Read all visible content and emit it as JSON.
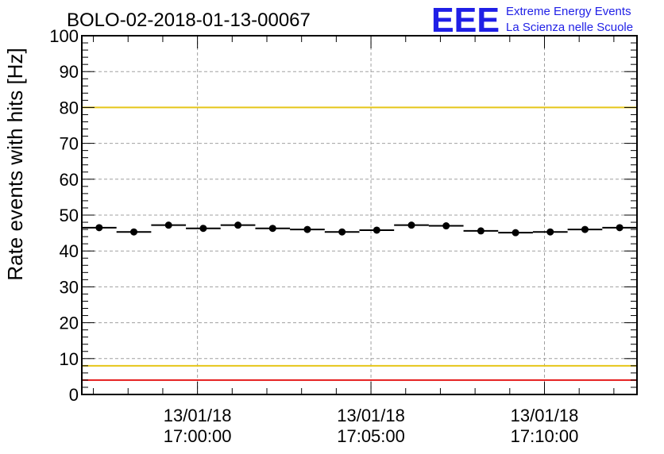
{
  "chart_data": {
    "type": "scatter",
    "title": "BOLO-02-2018-01-13-00067",
    "ylabel": "Rate events with hits [Hz]",
    "xlabel": "",
    "ylim": [
      0,
      100
    ],
    "y_ticks": [
      0,
      10,
      20,
      30,
      40,
      50,
      60,
      70,
      80,
      90,
      100
    ],
    "x_tick_labels": [
      {
        "date": "13/01/18",
        "time": "17:00:00"
      },
      {
        "date": "13/01/18",
        "time": "17:05:00"
      },
      {
        "date": "13/01/18",
        "time": "17:10:00"
      }
    ],
    "x_start": "16:56:40",
    "x_end": "17:12:40",
    "bin_width_s": 60,
    "grid": true,
    "series": [
      {
        "x": [
          "16:57:10",
          "16:58:10",
          "16:59:10",
          "17:00:10",
          "17:01:10",
          "17:02:10",
          "17:03:10",
          "17:04:10",
          "17:05:10",
          "17:06:10",
          "17:07:10",
          "17:08:10",
          "17:09:10",
          "17:10:10",
          "17:11:10",
          "17:12:10"
        ],
        "values": [
          46.5,
          45.3,
          47.2,
          46.3,
          47.2,
          46.3,
          46.0,
          45.3,
          45.8,
          47.2,
          47.0,
          45.6,
          45.1,
          45.3,
          46.0,
          46.5
        ],
        "color": "#000000"
      }
    ],
    "reference_lines": [
      {
        "y": 80,
        "color": "#e6c619"
      },
      {
        "y": 8,
        "color": "#e6c619"
      },
      {
        "y": 100,
        "color": "#e51919"
      },
      {
        "y": 4,
        "color": "#e51919"
      }
    ]
  },
  "logo": {
    "mark": "EEE",
    "line1": "Extreme Energy Events",
    "line2": "La Scienza nelle Scuole"
  }
}
